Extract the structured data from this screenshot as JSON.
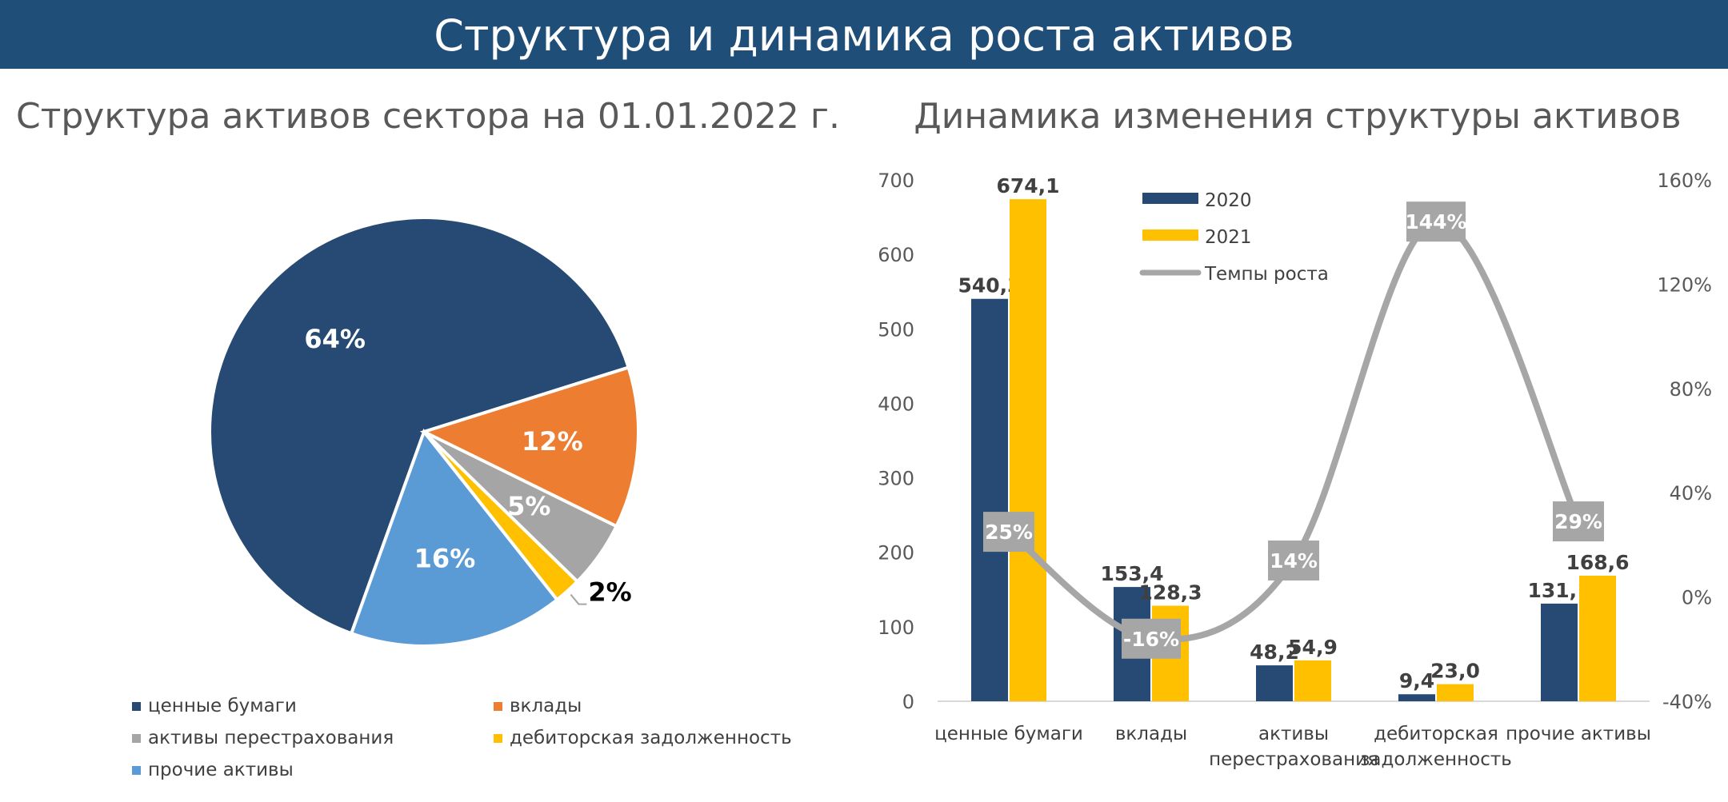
{
  "page_title": "Структура и динамика роста активов",
  "colors": {
    "banner": "#1f4e79",
    "navy": "#264a73",
    "orange": "#ed7d31",
    "gray": "#a5a5a5",
    "yellow": "#ffc000",
    "lightblue": "#5b9bd5",
    "line": "#a6a6a6"
  },
  "chart_data": [
    {
      "type": "pie",
      "title": "Структура активов сектора на 01.01.2022 г.",
      "slices": [
        {
          "name": "ценные бумаги",
          "value": 64,
          "label": "64%",
          "color": "#264a73"
        },
        {
          "name": "вклады",
          "value": 12,
          "label": "12%",
          "color": "#ed7d31"
        },
        {
          "name": "активы перестрахования",
          "value": 5,
          "label": "5%",
          "color": "#a5a5a5"
        },
        {
          "name": "дебиторская задолженность",
          "value": 2,
          "label": "2%",
          "color": "#ffc000"
        },
        {
          "name": "прочие активы",
          "value": 16,
          "label": "16%",
          "color": "#5b9bd5"
        }
      ],
      "legend_position": "bottom"
    },
    {
      "type": "bar",
      "title": "Динамика изменения структуры активов",
      "categories": [
        "ценные бумаги",
        "вклады",
        "активы перестрахования",
        "дебиторская задолженность",
        "прочие активы"
      ],
      "series": [
        {
          "name": "2020",
          "values": [
            540.3,
            153.4,
            48.2,
            9.4,
            131.1
          ],
          "labels": [
            "540,3",
            "153,4",
            "48,2",
            "9,4",
            "131,1"
          ],
          "color": "#264a73"
        },
        {
          "name": "2021",
          "values": [
            674.1,
            128.3,
            54.9,
            23.0,
            168.6
          ],
          "labels": [
            "674,1",
            "128,3",
            "54,9",
            "23,0",
            "168,6"
          ],
          "color": "#ffc000"
        }
      ],
      "line_series": {
        "name": "Темпы роста",
        "values": [
          25,
          -16,
          14,
          144,
          29
        ],
        "labels": [
          "25%",
          "-16%",
          "14%",
          "144%",
          "29%"
        ],
        "color": "#a6a6a6"
      },
      "ylim": [
        0,
        700
      ],
      "yticks": [
        "0",
        "100",
        "200",
        "300",
        "400",
        "500",
        "600",
        "700"
      ],
      "y2lim": [
        -40,
        160
      ],
      "y2ticks": [
        "-40%",
        "0%",
        "40%",
        "80%",
        "120%",
        "160%"
      ],
      "legend_position": "top-center"
    }
  ]
}
